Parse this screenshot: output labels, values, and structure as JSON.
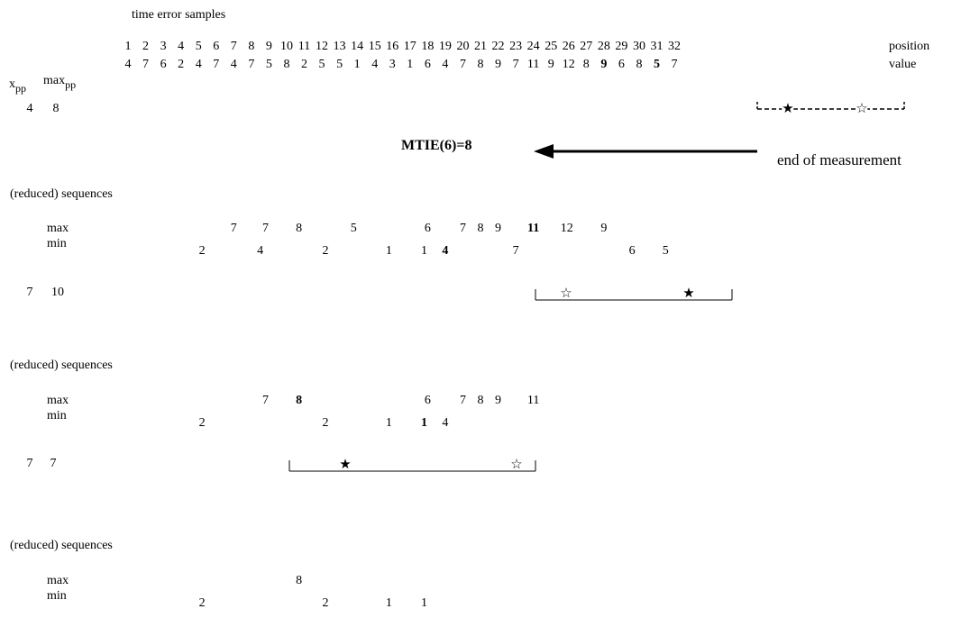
{
  "title": "time error samples",
  "positions": [
    "1",
    "2",
    "3",
    "4",
    "5",
    "6",
    "7",
    "8",
    "9",
    "10",
    "11",
    "12",
    "13",
    "14",
    "15",
    "16",
    "17",
    "18",
    "19",
    "20",
    "21",
    "22",
    "23",
    "24",
    "25",
    "26",
    "27",
    "28",
    "29",
    "30",
    "31",
    "32"
  ],
  "values": [
    "4",
    "7",
    "6",
    "2",
    "4",
    "7",
    "4",
    "7",
    "5",
    "8",
    "2",
    "5",
    "5",
    "1",
    "4",
    "3",
    "1",
    "6",
    "4",
    "7",
    "8",
    "9",
    "7",
    "11",
    "9",
    "12",
    "8",
    "9",
    "6",
    "8",
    "5",
    "7"
  ],
  "values_bold": [
    false,
    false,
    false,
    false,
    false,
    false,
    false,
    false,
    false,
    false,
    false,
    false,
    false,
    false,
    false,
    false,
    false,
    false,
    false,
    false,
    false,
    false,
    false,
    false,
    false,
    false,
    false,
    true,
    false,
    false,
    true,
    false
  ],
  "position_label": "position",
  "value_label": "value",
  "xpp_main": "x",
  "xpp_sub": "pp",
  "maxpp_main": "max",
  "maxpp_sub": "pp",
  "window1": {
    "xpp": "4",
    "maxpp": "8"
  },
  "mtie_label": "MTIE(6)=8",
  "end_label": "end of measurement",
  "reduced_label": "(reduced) sequences",
  "max_label": "max",
  "min_label": "min",
  "block1": {
    "max": [
      {
        "pos": 7,
        "v": "7",
        "bold": false
      },
      {
        "pos": 8.8,
        "v": "7",
        "bold": false
      },
      {
        "pos": 10.7,
        "v": "8",
        "bold": false
      },
      {
        "pos": 13.8,
        "v": "5",
        "bold": false
      },
      {
        "pos": 18,
        "v": "6",
        "bold": false
      },
      {
        "pos": 20,
        "v": "7",
        "bold": false
      },
      {
        "pos": 21,
        "v": "8",
        "bold": false
      },
      {
        "pos": 22,
        "v": "9",
        "bold": false
      },
      {
        "pos": 24,
        "v": "11",
        "bold": true
      },
      {
        "pos": 25.9,
        "v": "12",
        "bold": false
      },
      {
        "pos": 28,
        "v": "9",
        "bold": false
      }
    ],
    "min": [
      {
        "pos": 5.2,
        "v": "2",
        "bold": false
      },
      {
        "pos": 8.5,
        "v": "4",
        "bold": false
      },
      {
        "pos": 12.2,
        "v": "2",
        "bold": false
      },
      {
        "pos": 15.8,
        "v": "1",
        "bold": false
      },
      {
        "pos": 17.8,
        "v": "1",
        "bold": false
      },
      {
        "pos": 19,
        "v": "4",
        "bold": true
      },
      {
        "pos": 23,
        "v": "7",
        "bold": false
      },
      {
        "pos": 29.6,
        "v": "6",
        "bold": false
      },
      {
        "pos": 31.5,
        "v": "5",
        "bold": false
      }
    ],
    "xpp": "7",
    "maxpp": "10"
  },
  "block2": {
    "max": [
      {
        "pos": 8.8,
        "v": "7",
        "bold": false
      },
      {
        "pos": 10.7,
        "v": "8",
        "bold": true
      },
      {
        "pos": 18,
        "v": "6",
        "bold": false
      },
      {
        "pos": 20,
        "v": "7",
        "bold": false
      },
      {
        "pos": 21,
        "v": "8",
        "bold": false
      },
      {
        "pos": 22,
        "v": "9",
        "bold": false
      },
      {
        "pos": 24,
        "v": "11",
        "bold": false
      }
    ],
    "min": [
      {
        "pos": 5.2,
        "v": "2",
        "bold": false
      },
      {
        "pos": 12.2,
        "v": "2",
        "bold": false
      },
      {
        "pos": 15.8,
        "v": "1",
        "bold": false
      },
      {
        "pos": 17.8,
        "v": "1",
        "bold": true
      },
      {
        "pos": 19,
        "v": "4",
        "bold": false
      }
    ],
    "xpp": "7",
    "maxpp": "7"
  },
  "block3": {
    "max": [
      {
        "pos": 10.7,
        "v": "8",
        "bold": false
      }
    ],
    "min": [
      {
        "pos": 5.2,
        "v": "2",
        "bold": false
      },
      {
        "pos": 12.2,
        "v": "2",
        "bold": false
      },
      {
        "pos": 15.8,
        "v": "1",
        "bold": false
      },
      {
        "pos": 17.8,
        "v": "1",
        "bold": false
      }
    ]
  },
  "stars": {
    "filled": "★",
    "hollow": "☆"
  }
}
